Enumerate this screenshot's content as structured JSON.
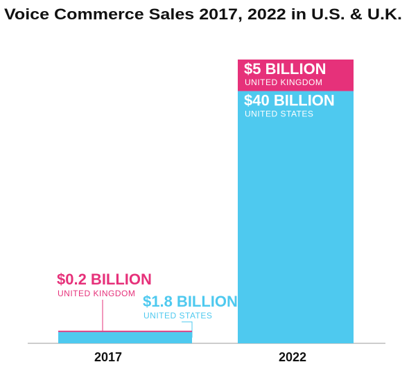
{
  "chart_data": {
    "type": "stacked-bar",
    "title": "Voice Commerce Sales 2017, 2022 in U.S. & U.K.",
    "categories": [
      "2017",
      "2022"
    ],
    "series": [
      {
        "name": "UNITED STATES",
        "color": "#4ec9ef",
        "values": [
          1.8,
          40
        ],
        "value_labels": [
          "$1.8 BILLION",
          "$40 BILLION"
        ]
      },
      {
        "name": "UNITED KINGDOM",
        "color": "#e6317a",
        "values": [
          0.2,
          5
        ],
        "value_labels": [
          "$0.2 BILLION",
          "$5 BILLION"
        ]
      }
    ]
  }
}
